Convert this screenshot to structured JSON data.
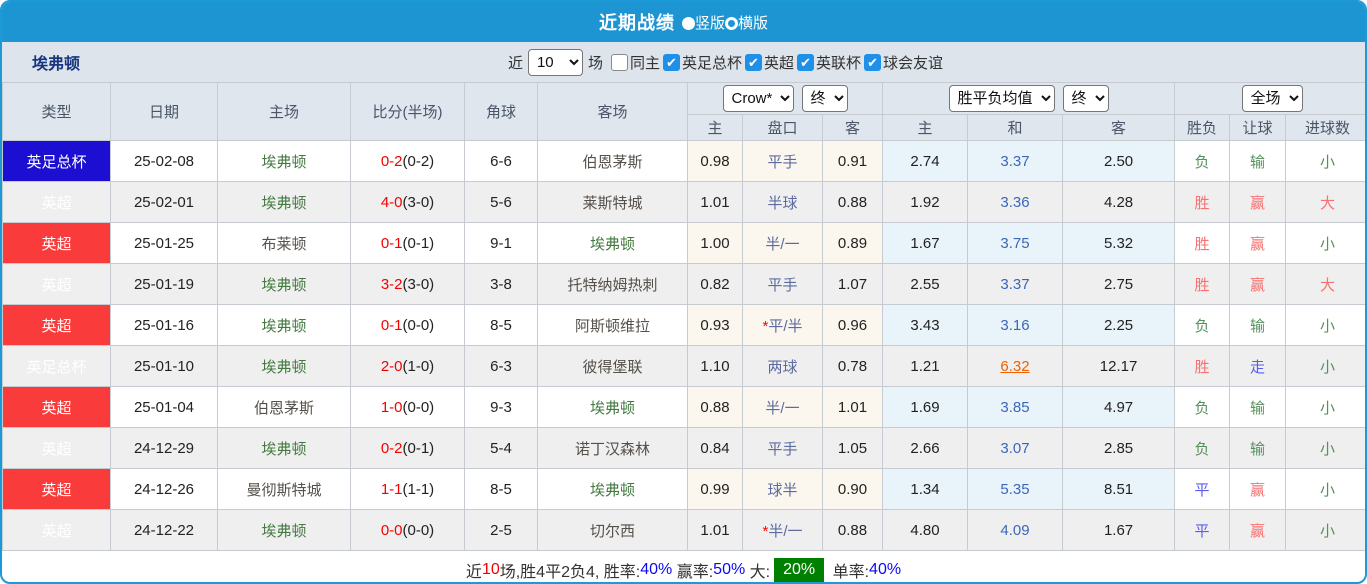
{
  "colors": {
    "accent_blue": "#1d95d3",
    "badge_blue": "#1c0fd2",
    "badge_red": "#f93b3b",
    "team_green": "#447a40",
    "score_red": "#f50000",
    "avg_draw_blue": "#3b67b8",
    "highlight_orange": "#f06000",
    "win_red": "#f87070",
    "lose_green": "#55915c",
    "draw_blue": "#5b5bef",
    "rate_blue": "#0a0af5",
    "big_box_green": "#008000"
  },
  "title_bar": {
    "title": "近期战绩",
    "radios": [
      {
        "label": "竖版",
        "selected": true
      },
      {
        "label": "横版",
        "selected": false
      }
    ]
  },
  "filter_bar": {
    "team": "埃弗顿",
    "recent_label": "近",
    "recent_value": "10",
    "recent_suffix": "场",
    "checkboxes": [
      {
        "label": "同主",
        "checked": false
      },
      {
        "label": "英足总杯",
        "checked": true
      },
      {
        "label": "英超",
        "checked": true
      },
      {
        "label": "英联杯",
        "checked": true
      },
      {
        "label": "球会友谊",
        "checked": true
      }
    ]
  },
  "table": {
    "static_headers": [
      "类型",
      "日期",
      "主场",
      "比分(半场)",
      "角球",
      "客场"
    ],
    "group1": {
      "selects": [
        "Crow*",
        "终"
      ],
      "sub": [
        "主",
        "盘口",
        "客"
      ]
    },
    "group2": {
      "selects": [
        "胜平负均值",
        "终"
      ],
      "sub": [
        "主",
        "和",
        "客"
      ]
    },
    "group3": {
      "selects": [
        "全场"
      ],
      "sub": [
        "胜负",
        "让球",
        "进球数"
      ]
    },
    "rows": [
      {
        "type": {
          "text": "英足总杯",
          "color": "blue"
        },
        "date": "25-02-08",
        "home": {
          "name": "埃弗顿",
          "self": true
        },
        "score": "0-2",
        "half": "(0-2)",
        "corners": "6-6",
        "away": {
          "name": "伯恩茅斯",
          "self": false
        },
        "odds_home": "0.98",
        "handicap": "平手",
        "handicap_star": false,
        "odds_away": "0.91",
        "avg_home": "2.74",
        "avg_draw": {
          "text": "3.37",
          "highlight": false
        },
        "avg_away": "2.50",
        "wdl": {
          "text": "负",
          "color": "green"
        },
        "cover": {
          "text": "输",
          "color": "green"
        },
        "goals": {
          "text": "小",
          "color": "green"
        }
      },
      {
        "type": {
          "text": "英超",
          "color": "red"
        },
        "date": "25-02-01",
        "home": {
          "name": "埃弗顿",
          "self": true
        },
        "score": "4-0",
        "half": "(3-0)",
        "corners": "5-6",
        "away": {
          "name": "莱斯特城",
          "self": false
        },
        "odds_home": "1.01",
        "handicap": "半球",
        "handicap_star": false,
        "odds_away": "0.88",
        "avg_home": "1.92",
        "avg_draw": {
          "text": "3.36",
          "highlight": false
        },
        "avg_away": "4.28",
        "wdl": {
          "text": "胜",
          "color": "red"
        },
        "cover": {
          "text": "赢",
          "color": "red"
        },
        "goals": {
          "text": "大",
          "color": "red"
        }
      },
      {
        "type": {
          "text": "英超",
          "color": "red"
        },
        "date": "25-01-25",
        "home": {
          "name": "布莱顿",
          "self": false
        },
        "score": "0-1",
        "half": "(0-1)",
        "corners": "9-1",
        "away": {
          "name": "埃弗顿",
          "self": true
        },
        "odds_home": "1.00",
        "handicap": "半/一",
        "handicap_star": false,
        "odds_away": "0.89",
        "avg_home": "1.67",
        "avg_draw": {
          "text": "3.75",
          "highlight": false
        },
        "avg_away": "5.32",
        "wdl": {
          "text": "胜",
          "color": "red"
        },
        "cover": {
          "text": "赢",
          "color": "red"
        },
        "goals": {
          "text": "小",
          "color": "green"
        }
      },
      {
        "type": {
          "text": "英超",
          "color": "red"
        },
        "date": "25-01-19",
        "home": {
          "name": "埃弗顿",
          "self": true
        },
        "score": "3-2",
        "half": "(3-0)",
        "corners": "3-8",
        "away": {
          "name": "托特纳姆热刺",
          "self": false
        },
        "odds_home": "0.82",
        "handicap": "平手",
        "handicap_star": false,
        "odds_away": "1.07",
        "avg_home": "2.55",
        "avg_draw": {
          "text": "3.37",
          "highlight": false
        },
        "avg_away": "2.75",
        "wdl": {
          "text": "胜",
          "color": "red"
        },
        "cover": {
          "text": "赢",
          "color": "red"
        },
        "goals": {
          "text": "大",
          "color": "red"
        }
      },
      {
        "type": {
          "text": "英超",
          "color": "red"
        },
        "date": "25-01-16",
        "home": {
          "name": "埃弗顿",
          "self": true
        },
        "score": "0-1",
        "half": "(0-0)",
        "corners": "8-5",
        "away": {
          "name": "阿斯顿维拉",
          "self": false
        },
        "odds_home": "0.93",
        "handicap": "平/半",
        "handicap_star": true,
        "odds_away": "0.96",
        "avg_home": "3.43",
        "avg_draw": {
          "text": "3.16",
          "highlight": false
        },
        "avg_away": "2.25",
        "wdl": {
          "text": "负",
          "color": "green"
        },
        "cover": {
          "text": "输",
          "color": "green"
        },
        "goals": {
          "text": "小",
          "color": "green"
        }
      },
      {
        "type": {
          "text": "英足总杯",
          "color": "blue"
        },
        "date": "25-01-10",
        "home": {
          "name": "埃弗顿",
          "self": true
        },
        "score": "2-0",
        "half": "(1-0)",
        "corners": "6-3",
        "away": {
          "name": "彼得堡联",
          "self": false
        },
        "odds_home": "1.10",
        "handicap": "两球",
        "handicap_star": false,
        "odds_away": "0.78",
        "avg_home": "1.21",
        "avg_draw": {
          "text": "6.32",
          "highlight": true
        },
        "avg_away": "12.17",
        "wdl": {
          "text": "胜",
          "color": "red"
        },
        "cover": {
          "text": "走",
          "color": "blue"
        },
        "goals": {
          "text": "小",
          "color": "green"
        }
      },
      {
        "type": {
          "text": "英超",
          "color": "red"
        },
        "date": "25-01-04",
        "home": {
          "name": "伯恩茅斯",
          "self": false
        },
        "score": "1-0",
        "half": "(0-0)",
        "corners": "9-3",
        "away": {
          "name": "埃弗顿",
          "self": true
        },
        "odds_home": "0.88",
        "handicap": "半/一",
        "handicap_star": false,
        "odds_away": "1.01",
        "avg_home": "1.69",
        "avg_draw": {
          "text": "3.85",
          "highlight": false
        },
        "avg_away": "4.97",
        "wdl": {
          "text": "负",
          "color": "green"
        },
        "cover": {
          "text": "输",
          "color": "green"
        },
        "goals": {
          "text": "小",
          "color": "green"
        }
      },
      {
        "type": {
          "text": "英超",
          "color": "red"
        },
        "date": "24-12-29",
        "home": {
          "name": "埃弗顿",
          "self": true
        },
        "score": "0-2",
        "half": "(0-1)",
        "corners": "5-4",
        "away": {
          "name": "诺丁汉森林",
          "self": false
        },
        "odds_home": "0.84",
        "handicap": "平手",
        "handicap_star": false,
        "odds_away": "1.05",
        "avg_home": "2.66",
        "avg_draw": {
          "text": "3.07",
          "highlight": false
        },
        "avg_away": "2.85",
        "wdl": {
          "text": "负",
          "color": "green"
        },
        "cover": {
          "text": "输",
          "color": "green"
        },
        "goals": {
          "text": "小",
          "color": "green"
        }
      },
      {
        "type": {
          "text": "英超",
          "color": "red"
        },
        "date": "24-12-26",
        "home": {
          "name": "曼彻斯特城",
          "self": false
        },
        "score": "1-1",
        "half": "(1-1)",
        "corners": "8-5",
        "away": {
          "name": "埃弗顿",
          "self": true
        },
        "odds_home": "0.99",
        "handicap": "球半",
        "handicap_star": false,
        "odds_away": "0.90",
        "avg_home": "1.34",
        "avg_draw": {
          "text": "5.35",
          "highlight": false
        },
        "avg_away": "8.51",
        "wdl": {
          "text": "平",
          "color": "blue"
        },
        "cover": {
          "text": "赢",
          "color": "red"
        },
        "goals": {
          "text": "小",
          "color": "green"
        }
      },
      {
        "type": {
          "text": "英超",
          "color": "red"
        },
        "date": "24-12-22",
        "home": {
          "name": "埃弗顿",
          "self": true
        },
        "score": "0-0",
        "half": "(0-0)",
        "corners": "2-5",
        "away": {
          "name": "切尔西",
          "self": false
        },
        "odds_home": "1.01",
        "handicap": "半/一",
        "handicap_star": true,
        "odds_away": "0.88",
        "avg_home": "4.80",
        "avg_draw": {
          "text": "4.09",
          "highlight": false
        },
        "avg_away": "1.67",
        "wdl": {
          "text": "平",
          "color": "blue"
        },
        "cover": {
          "text": "赢",
          "color": "red"
        },
        "goals": {
          "text": "小",
          "color": "green"
        }
      }
    ]
  },
  "summary": {
    "segments": [
      {
        "text": "近",
        "color": "black"
      },
      {
        "text": "10",
        "color": "red"
      },
      {
        "text": "场,胜4平2负4, ",
        "color": "black"
      },
      {
        "text": "胜率:",
        "color": "black"
      },
      {
        "text": "40%",
        "color": "blue"
      },
      {
        "text": " 赢率:",
        "color": "black"
      },
      {
        "text": "50%",
        "color": "blue"
      },
      {
        "text": " 大:",
        "color": "black"
      },
      {
        "text": "20%",
        "color": "greenbox"
      },
      {
        "text": " 单率:",
        "color": "black"
      },
      {
        "text": "40%",
        "color": "blue"
      }
    ]
  }
}
